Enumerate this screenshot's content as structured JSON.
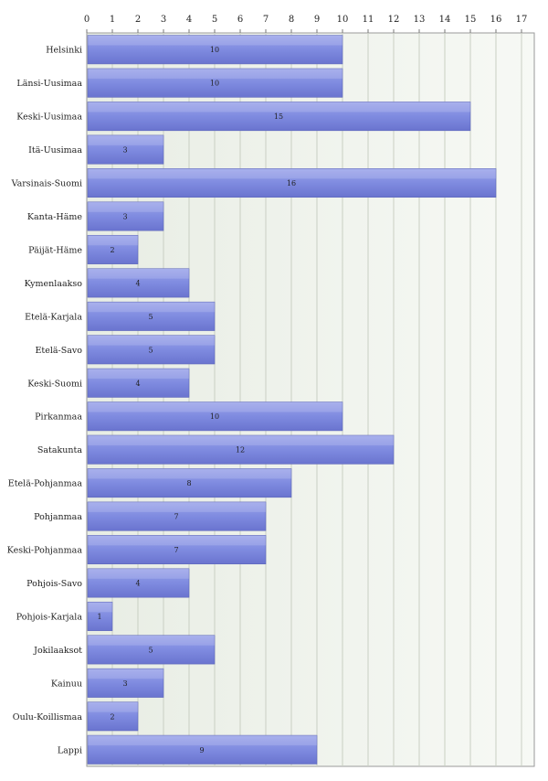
{
  "chart_data": {
    "type": "bar",
    "orientation": "horizontal",
    "title": "",
    "xlabel": "",
    "ylabel": "",
    "xlim": [
      0,
      17.5
    ],
    "xticks": [
      0,
      1,
      2,
      3,
      4,
      5,
      6,
      7,
      8,
      9,
      10,
      11,
      12,
      13,
      14,
      15,
      16,
      17
    ],
    "grid": true,
    "legend": "none",
    "bar_color": "#7f8be0",
    "categories": [
      "Helsinki",
      "Länsi-Uusimaa",
      "Keski-Uusimaa",
      "Itä-Uusimaa",
      "Varsinais-Suomi",
      "Kanta-Häme",
      "Päijät-Häme",
      "Kymenlaakso",
      "Etelä-Karjala",
      "Etelä-Savo",
      "Keski-Suomi",
      "Pirkanmaa",
      "Satakunta",
      "Etelä-Pohjanmaa",
      "Pohjanmaa",
      "Keski-Pohjanmaa",
      "Pohjois-Savo",
      "Pohjois-Karjala",
      "Jokilaaksot",
      "Kainuu",
      "Oulu-Koillismaa",
      "Lappi"
    ],
    "values": [
      10,
      10,
      15,
      3,
      16,
      3,
      2,
      4,
      5,
      5,
      4,
      10,
      12,
      8,
      7,
      7,
      4,
      1,
      5,
      3,
      2,
      9
    ],
    "value_labels": [
      "10",
      "10",
      "15",
      "3",
      "16",
      "3",
      "2",
      "4",
      "5",
      "5",
      "4",
      "10",
      "12",
      "8",
      "7",
      "7",
      "4",
      "1",
      "5",
      "3",
      "2",
      "9"
    ]
  }
}
